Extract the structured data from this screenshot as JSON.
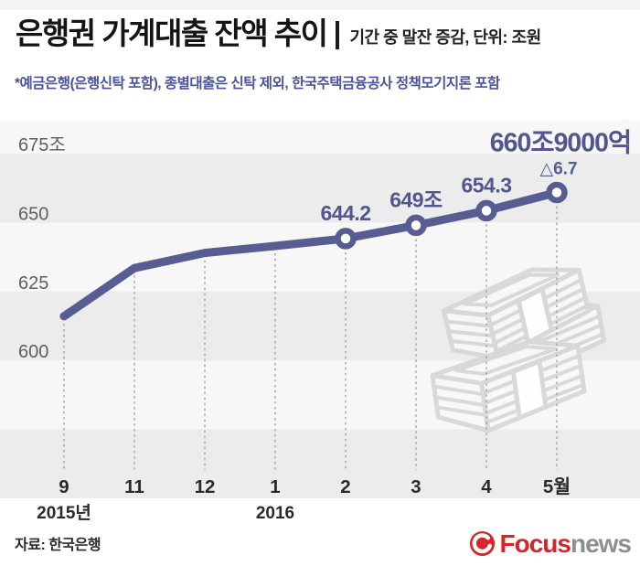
{
  "header": {
    "title": "은행권 가계대출 잔액 추이",
    "subtitle": "기간 중 말잔 증감, 단위: 조원",
    "note": "*예금은행(은행신탁 포함), 종별대출은 신탁 제외, 한국주택금융공사 정책모기지론 포함"
  },
  "chart_data": {
    "type": "line",
    "title": "은행권 가계대출 잔액 추이",
    "unit": "조원",
    "x": [
      "9",
      "11",
      "12",
      "1",
      "2",
      "3",
      "4",
      "5월"
    ],
    "x_year_labels": [
      {
        "label": "2015년",
        "tick_index": 0
      },
      {
        "label": "2016",
        "tick_index": 3
      }
    ],
    "values": [
      616,
      633.5,
      639,
      641.5,
      644.2,
      649,
      654.3,
      660.9
    ],
    "point_labels": [
      "",
      "",
      "",
      "",
      "644.2",
      "649조",
      "654.3",
      "660조9000억"
    ],
    "final_change_annotation": "△6.7",
    "markers_on": [
      4,
      5,
      6,
      7
    ],
    "y_ticks": [
      {
        "label": "675조",
        "value": 675
      },
      {
        "label": "650",
        "value": 650
      },
      {
        "label": "625",
        "value": 625
      },
      {
        "label": "600",
        "value": 600
      }
    ],
    "ylim": [
      550,
      680
    ],
    "grid": "alternating horizontal bands",
    "legend": "none"
  },
  "footer": {
    "source": "자료: 한국은행",
    "logo": {
      "primary": "Focus",
      "secondary": "news"
    }
  },
  "colors": {
    "line": "#575d92",
    "point_label": "#51578e",
    "note_text": "#4a549c",
    "band_dark": "#ececec",
    "band_light": "#f7f7f7",
    "axis_label": "#5f5f5f",
    "tick_label": "#2a2a2a",
    "dash": "#9b9b9b",
    "money_icon": "#d6d6d6",
    "logo_red": "#d6252b",
    "logo_gray": "#8a8e93"
  }
}
